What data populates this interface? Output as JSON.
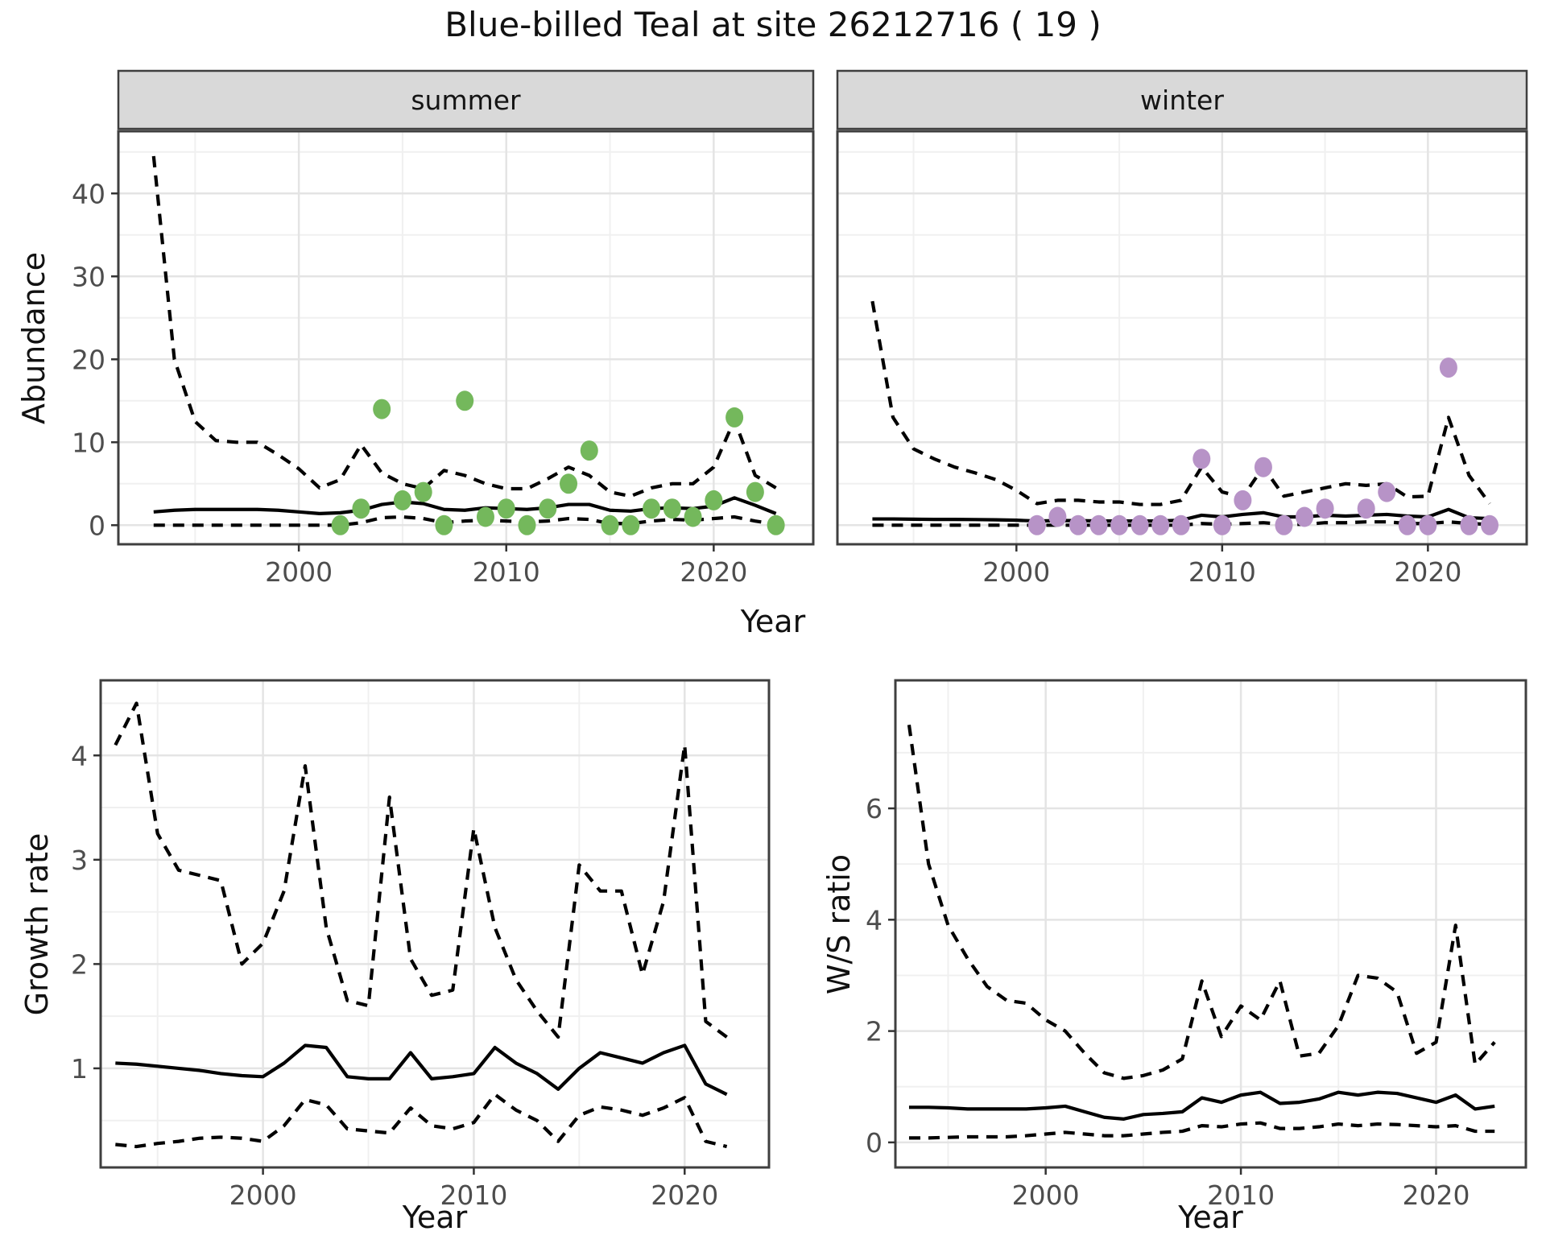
{
  "title": "Blue-billed Teal at site 26212716 ( 19 )",
  "labels": {
    "abundance": "Abundance",
    "year": "Year",
    "growth_rate": "Growth rate",
    "ws_ratio": "W/S ratio"
  },
  "colors": {
    "summer_point": "#74b85c",
    "winter_point": "#b793c7",
    "line": "#000000",
    "strip_bg": "#d9d9d9",
    "panel_border": "#3f3f3f",
    "grid_major": "#e4e4e4",
    "grid_minor": "#f0f0f0",
    "tick_mark": "#333333",
    "tick_text": "#4d4d4d",
    "strip_text": "#141414"
  },
  "chart_data": [
    {
      "id": "abundance_summer",
      "type": "line",
      "facet_label": "summer",
      "ylabel": "Abundance",
      "xlabel": "Year",
      "xlim": [
        1991.3,
        2024.8
      ],
      "ylim": [
        -2.3,
        47.5
      ],
      "xticks": [
        2000,
        2010,
        2020
      ],
      "xminor": [
        1995,
        2005,
        2015
      ],
      "yticks": [
        0,
        10,
        20,
        30,
        40
      ],
      "yminor": [
        5,
        15,
        25,
        35,
        45
      ],
      "grid": true,
      "x": [
        1993,
        1994,
        1995,
        1996,
        1997,
        1998,
        1999,
        2000,
        2001,
        2002,
        2003,
        2004,
        2005,
        2006,
        2007,
        2008,
        2009,
        2010,
        2011,
        2012,
        2013,
        2014,
        2015,
        2016,
        2017,
        2018,
        2019,
        2020,
        2021,
        2022,
        2023
      ],
      "series": [
        {
          "name": "upper 95% CI",
          "style": "dashed",
          "values": [
            44.5,
            20,
            12.5,
            10.2,
            10,
            10,
            8.5,
            6.8,
            4.5,
            5.5,
            9.7,
            6.3,
            5,
            4.4,
            6.6,
            6,
            5,
            4.4,
            4.4,
            5.6,
            7,
            6,
            4,
            3.5,
            4.5,
            5,
            5,
            7,
            12.7,
            6,
            4.5
          ]
        },
        {
          "name": "median",
          "style": "solid",
          "values": [
            1.6,
            1.8,
            1.9,
            1.9,
            1.9,
            1.9,
            1.8,
            1.6,
            1.4,
            1.5,
            1.8,
            2.5,
            2.8,
            2.6,
            1.9,
            1.8,
            2.1,
            2,
            1.9,
            2.1,
            2.5,
            2.5,
            1.8,
            1.7,
            2,
            2.1,
            2,
            2.3,
            3.3,
            2.4,
            1.4
          ]
        },
        {
          "name": "lower 95% CI",
          "style": "dashed",
          "values": [
            0,
            0,
            0,
            0,
            0,
            0,
            0,
            0,
            0,
            0,
            0.3,
            0.9,
            1,
            0.8,
            0.3,
            0.5,
            0.6,
            0.5,
            0.4,
            0.5,
            0.8,
            0.7,
            0.2,
            0.2,
            0.5,
            0.7,
            0.6,
            0.8,
            1,
            0.5,
            0.1
          ]
        }
      ],
      "points": {
        "color_key": "summer_point",
        "years": [
          2002,
          2003,
          2004,
          2005,
          2006,
          2007,
          2008,
          2009,
          2010,
          2011,
          2012,
          2013,
          2014,
          2015,
          2016,
          2017,
          2018,
          2019,
          2020,
          2021,
          2022,
          2023
        ],
        "values": [
          0,
          2,
          14,
          3,
          4,
          0,
          15,
          1,
          2,
          0,
          2,
          5,
          9,
          0,
          0,
          2,
          2,
          1,
          3,
          13,
          4,
          0
        ]
      }
    },
    {
      "id": "abundance_winter",
      "type": "line",
      "facet_label": "winter",
      "ylabel": "Abundance",
      "xlabel": "Year",
      "xlim": [
        1991.3,
        2024.8
      ],
      "ylim": [
        -2.3,
        47.5
      ],
      "xticks": [
        2000,
        2010,
        2020
      ],
      "xminor": [
        1995,
        2005,
        2015
      ],
      "yticks": [
        0,
        10,
        20,
        30,
        40
      ],
      "yminor": [
        5,
        15,
        25,
        35,
        45
      ],
      "grid": true,
      "x": [
        1993,
        1994,
        1995,
        1996,
        1997,
        1998,
        1999,
        2000,
        2001,
        2002,
        2003,
        2004,
        2005,
        2006,
        2007,
        2008,
        2009,
        2010,
        2011,
        2012,
        2013,
        2014,
        2015,
        2016,
        2017,
        2018,
        2019,
        2020,
        2021,
        2022,
        2023
      ],
      "series": [
        {
          "name": "upper 95% CI",
          "style": "dashed",
          "values": [
            27,
            13,
            9.2,
            8,
            7,
            6.3,
            5.5,
            4.2,
            2.6,
            3,
            3,
            2.8,
            2.8,
            2.5,
            2.5,
            3,
            7,
            4,
            3.4,
            7,
            3.5,
            4,
            4.5,
            5,
            4.8,
            5,
            3.4,
            3.5,
            13,
            6,
            2.6
          ]
        },
        {
          "name": "median",
          "style": "solid",
          "values": [
            0.75,
            0.75,
            0.72,
            0.7,
            0.7,
            0.68,
            0.65,
            0.6,
            0.5,
            0.55,
            0.55,
            0.5,
            0.5,
            0.5,
            0.5,
            0.6,
            1.2,
            1,
            1.3,
            1.5,
            1,
            1,
            1.2,
            1.1,
            1.2,
            1.3,
            1.1,
            1,
            1.9,
            0.9,
            0.8
          ]
        },
        {
          "name": "lower 95% CI",
          "style": "dashed",
          "values": [
            0,
            0,
            0,
            0,
            0,
            0,
            0,
            0,
            0,
            0,
            0,
            0,
            0,
            0,
            0,
            0,
            0.2,
            0.1,
            0.2,
            0.3,
            0.1,
            0.1,
            0.3,
            0.3,
            0.4,
            0.4,
            0.2,
            0.2,
            0.4,
            0.2,
            0.1
          ]
        }
      ],
      "points": {
        "color_key": "winter_point",
        "years": [
          2001,
          2002,
          2003,
          2004,
          2005,
          2006,
          2007,
          2008,
          2009,
          2010,
          2011,
          2012,
          2013,
          2014,
          2015,
          2017,
          2018,
          2019,
          2020,
          2021,
          2022,
          2023
        ],
        "values": [
          0,
          1,
          0,
          0,
          0,
          0,
          0,
          0,
          8,
          0,
          3,
          7,
          0,
          1,
          2,
          2,
          4,
          0,
          0,
          19,
          0,
          0
        ]
      }
    },
    {
      "id": "growth_rate",
      "type": "line",
      "facet_label": null,
      "ylabel": "Growth rate",
      "xlabel": "Year",
      "xlim": [
        1992.3,
        2024.0
      ],
      "ylim": [
        0.05,
        4.72
      ],
      "xticks": [
        2000,
        2010,
        2020
      ],
      "xminor": [
        1995,
        2005,
        2015
      ],
      "yticks": [
        1,
        2,
        3,
        4
      ],
      "yminor": [
        0.5,
        1.5,
        2.5,
        3.5,
        4.5
      ],
      "grid": true,
      "x": [
        1993,
        1994,
        1995,
        1996,
        1997,
        1998,
        1999,
        2000,
        2001,
        2002,
        2003,
        2004,
        2005,
        2006,
        2007,
        2008,
        2009,
        2010,
        2011,
        2012,
        2013,
        2014,
        2015,
        2016,
        2017,
        2018,
        2019,
        2020,
        2021,
        2022
      ],
      "series": [
        {
          "name": "upper 95% CI",
          "style": "dashed",
          "values": [
            4.1,
            4.5,
            3.25,
            2.9,
            2.85,
            2.8,
            2,
            2.2,
            2.7,
            3.9,
            2.35,
            1.65,
            1.6,
            3.6,
            2.05,
            1.7,
            1.75,
            3.3,
            2.35,
            1.85,
            1.55,
            1.3,
            2.95,
            2.7,
            2.7,
            1.9,
            2.6,
            4.1,
            1.45,
            1.3
          ]
        },
        {
          "name": "median",
          "style": "solid",
          "values": [
            1.05,
            1.04,
            1.02,
            1,
            0.98,
            0.95,
            0.93,
            0.92,
            1.05,
            1.22,
            1.2,
            0.92,
            0.9,
            0.9,
            1.15,
            0.9,
            0.92,
            0.95,
            1.2,
            1.05,
            0.95,
            0.8,
            1,
            1.15,
            1.1,
            1.05,
            1.15,
            1.22,
            0.85,
            0.75
          ]
        },
        {
          "name": "lower 95% CI",
          "style": "dashed",
          "values": [
            0.27,
            0.25,
            0.28,
            0.3,
            0.33,
            0.34,
            0.33,
            0.3,
            0.45,
            0.7,
            0.65,
            0.42,
            0.4,
            0.38,
            0.62,
            0.45,
            0.42,
            0.48,
            0.75,
            0.6,
            0.5,
            0.3,
            0.55,
            0.63,
            0.6,
            0.55,
            0.62,
            0.72,
            0.3,
            0.25
          ]
        }
      ],
      "points": null
    },
    {
      "id": "ws_ratio",
      "type": "line",
      "facet_label": null,
      "ylabel": "W/S ratio",
      "xlabel": "Year",
      "xlim": [
        1992.3,
        2024.6
      ],
      "ylim": [
        -0.45,
        8.3
      ],
      "xticks": [
        2000,
        2010,
        2020
      ],
      "xminor": [
        1995,
        2005,
        2015
      ],
      "yticks": [
        0,
        2,
        4,
        6
      ],
      "yminor": [
        1,
        3,
        5,
        7
      ],
      "grid": true,
      "x": [
        1993,
        1994,
        1995,
        1996,
        1997,
        1998,
        1999,
        2000,
        2001,
        2002,
        2003,
        2004,
        2005,
        2006,
        2007,
        2008,
        2009,
        2010,
        2011,
        2012,
        2013,
        2014,
        2015,
        2016,
        2017,
        2018,
        2019,
        2020,
        2021,
        2022,
        2023
      ],
      "series": [
        {
          "name": "upper 95% CI",
          "style": "dashed",
          "values": [
            7.5,
            5,
            3.9,
            3.3,
            2.8,
            2.55,
            2.5,
            2.2,
            2,
            1.6,
            1.25,
            1.15,
            1.2,
            1.3,
            1.5,
            2.9,
            1.9,
            2.45,
            2.2,
            2.9,
            1.55,
            1.6,
            2.1,
            3,
            2.95,
            2.7,
            1.6,
            1.8,
            3.9,
            1.4,
            1.8
          ]
        },
        {
          "name": "median",
          "style": "solid",
          "values": [
            0.63,
            0.63,
            0.62,
            0.6,
            0.6,
            0.6,
            0.6,
            0.62,
            0.65,
            0.55,
            0.45,
            0.42,
            0.5,
            0.52,
            0.55,
            0.8,
            0.72,
            0.85,
            0.9,
            0.7,
            0.72,
            0.78,
            0.9,
            0.85,
            0.9,
            0.88,
            0.8,
            0.72,
            0.85,
            0.6,
            0.65
          ]
        },
        {
          "name": "lower 95% CI",
          "style": "dashed",
          "values": [
            0.08,
            0.08,
            0.09,
            0.1,
            0.1,
            0.1,
            0.12,
            0.15,
            0.18,
            0.15,
            0.12,
            0.12,
            0.15,
            0.18,
            0.2,
            0.3,
            0.28,
            0.33,
            0.35,
            0.25,
            0.25,
            0.28,
            0.33,
            0.3,
            0.33,
            0.32,
            0.3,
            0.28,
            0.3,
            0.2,
            0.2
          ]
        }
      ],
      "points": null
    }
  ]
}
